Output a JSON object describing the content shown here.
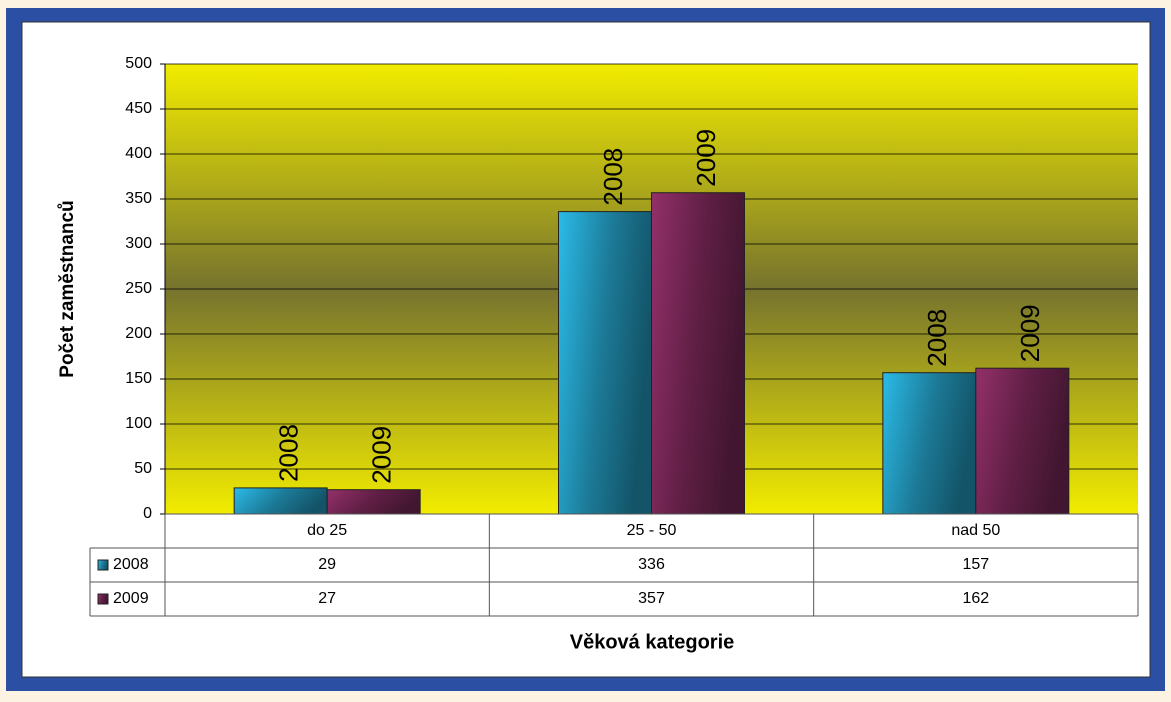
{
  "chart_data": {
    "type": "bar",
    "categories": [
      "do 25",
      "25 - 50",
      "nad 50"
    ],
    "series": [
      {
        "name": "2008",
        "color": "#2bbbe8",
        "values": [
          29,
          336,
          157
        ]
      },
      {
        "name": "2009",
        "color": "#93306a",
        "values": [
          27,
          357,
          162
        ]
      }
    ],
    "ylim": [
      0,
      500
    ],
    "yticks": [
      0,
      50,
      100,
      150,
      200,
      250,
      300,
      350,
      400,
      450,
      500
    ],
    "ylabel": "Počet zaměstnanců",
    "xlabel": "Věková kategorie",
    "grid": true
  }
}
